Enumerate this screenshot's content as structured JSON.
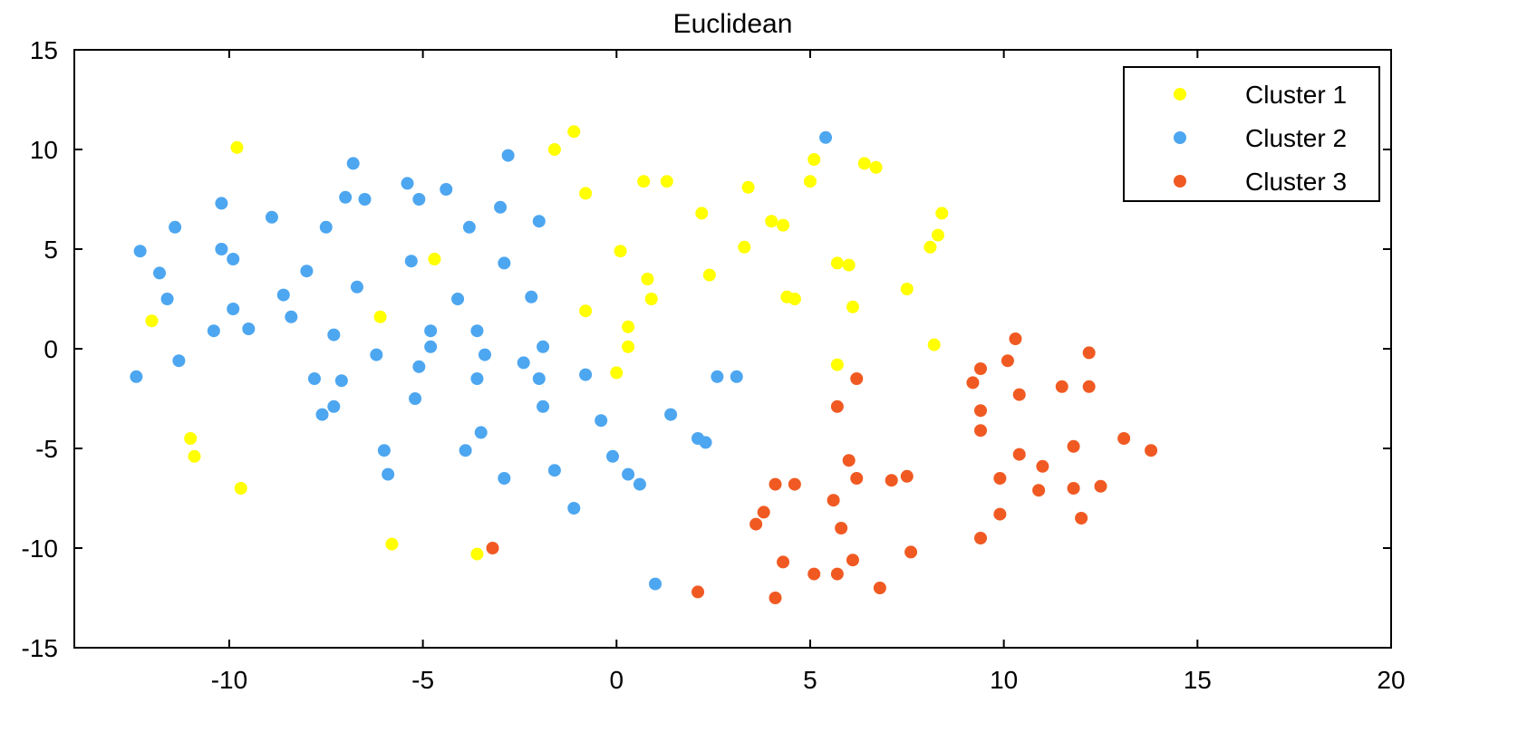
{
  "chart_data": {
    "type": "scatter",
    "title": "Euclidean",
    "xlabel": "",
    "ylabel": "",
    "xlim": [
      -14,
      20
    ],
    "ylim": [
      -15,
      15
    ],
    "x_ticks": [
      -10,
      -5,
      0,
      5,
      10,
      15,
      20
    ],
    "y_ticks": [
      -15,
      -10,
      -5,
      0,
      5,
      10,
      15
    ],
    "x_tick_labels": [
      "-10",
      "-5",
      "0",
      "5",
      "10",
      "15",
      "20"
    ],
    "y_tick_labels": [
      "-15",
      "-10",
      "-5",
      "0",
      "5",
      "10",
      "15"
    ],
    "grid": false,
    "legend_position": "top-right",
    "series": [
      {
        "name": "Cluster 1",
        "color": "#ffff00",
        "points": [
          [
            -9.8,
            10.1
          ],
          [
            -12.0,
            1.4
          ],
          [
            -11.0,
            -4.5
          ],
          [
            -10.9,
            -5.4
          ],
          [
            -9.7,
            -7.0
          ],
          [
            -6.1,
            1.6
          ],
          [
            -4.7,
            4.5
          ],
          [
            -5.8,
            -9.8
          ],
          [
            -3.6,
            -10.3
          ],
          [
            -1.6,
            10.0
          ],
          [
            -1.1,
            10.9
          ],
          [
            -0.8,
            7.8
          ],
          [
            -0.8,
            1.9
          ],
          [
            0.1,
            4.9
          ],
          [
            0.3,
            1.1
          ],
          [
            0.3,
            0.1
          ],
          [
            0.0,
            -1.2
          ],
          [
            0.7,
            8.4
          ],
          [
            1.3,
            8.4
          ],
          [
            0.8,
            3.5
          ],
          [
            0.9,
            2.5
          ],
          [
            2.2,
            6.8
          ],
          [
            2.4,
            3.7
          ],
          [
            3.3,
            5.1
          ],
          [
            3.4,
            8.1
          ],
          [
            4.0,
            6.4
          ],
          [
            4.3,
            6.2
          ],
          [
            4.4,
            2.6
          ],
          [
            4.6,
            2.5
          ],
          [
            5.0,
            8.4
          ],
          [
            5.1,
            9.5
          ],
          [
            5.7,
            4.3
          ],
          [
            6.0,
            4.2
          ],
          [
            6.1,
            2.1
          ],
          [
            6.4,
            9.3
          ],
          [
            6.7,
            9.1
          ],
          [
            5.7,
            -0.8
          ],
          [
            7.5,
            3.0
          ],
          [
            8.1,
            5.1
          ],
          [
            8.3,
            5.7
          ],
          [
            8.4,
            6.8
          ],
          [
            8.2,
            0.2
          ]
        ]
      },
      {
        "name": "Cluster 2",
        "color": "#4da6f0",
        "points": [
          [
            -12.3,
            4.9
          ],
          [
            -12.4,
            -1.4
          ],
          [
            -11.8,
            3.8
          ],
          [
            -11.6,
            2.5
          ],
          [
            -11.4,
            6.1
          ],
          [
            -11.3,
            -0.6
          ],
          [
            -10.4,
            0.9
          ],
          [
            -10.2,
            7.3
          ],
          [
            -10.2,
            5.0
          ],
          [
            -9.9,
            4.5
          ],
          [
            -9.9,
            2.0
          ],
          [
            -9.5,
            1.0
          ],
          [
            -8.9,
            6.6
          ],
          [
            -8.6,
            2.7
          ],
          [
            -8.4,
            1.6
          ],
          [
            -8.0,
            3.9
          ],
          [
            -7.8,
            -1.5
          ],
          [
            -7.6,
            -3.3
          ],
          [
            -7.3,
            -2.9
          ],
          [
            -7.5,
            6.1
          ],
          [
            -7.3,
            0.7
          ],
          [
            -7.1,
            -1.6
          ],
          [
            -7.0,
            7.6
          ],
          [
            -6.8,
            9.3
          ],
          [
            -6.7,
            3.1
          ],
          [
            -6.5,
            7.5
          ],
          [
            -6.2,
            -0.3
          ],
          [
            -6.0,
            -5.1
          ],
          [
            -5.9,
            -6.3
          ],
          [
            -5.4,
            8.3
          ],
          [
            -5.3,
            4.4
          ],
          [
            -5.1,
            7.5
          ],
          [
            -5.1,
            -0.9
          ],
          [
            -5.2,
            -2.5
          ],
          [
            -4.8,
            0.9
          ],
          [
            -4.8,
            0.1
          ],
          [
            -4.4,
            8.0
          ],
          [
            -4.1,
            2.5
          ],
          [
            -3.8,
            6.1
          ],
          [
            -3.9,
            -5.1
          ],
          [
            -3.6,
            0.9
          ],
          [
            -3.6,
            -1.5
          ],
          [
            -3.5,
            -4.2
          ],
          [
            -3.4,
            -0.3
          ],
          [
            -3.0,
            7.1
          ],
          [
            -2.9,
            4.3
          ],
          [
            -2.8,
            9.7
          ],
          [
            -2.9,
            -6.5
          ],
          [
            -2.4,
            -0.7
          ],
          [
            -2.2,
            2.6
          ],
          [
            -2.0,
            6.4
          ],
          [
            -1.9,
            0.1
          ],
          [
            -2.0,
            -1.5
          ],
          [
            -1.9,
            -2.9
          ],
          [
            -1.6,
            -6.1
          ],
          [
            -0.8,
            -1.3
          ],
          [
            -1.1,
            -8.0
          ],
          [
            -0.4,
            -3.6
          ],
          [
            -0.1,
            -5.4
          ],
          [
            0.3,
            -6.3
          ],
          [
            0.6,
            -6.8
          ],
          [
            1.0,
            -11.8
          ],
          [
            1.4,
            -3.3
          ],
          [
            2.1,
            -4.5
          ],
          [
            2.3,
            -4.7
          ],
          [
            2.6,
            -1.4
          ],
          [
            3.1,
            -1.4
          ],
          [
            5.4,
            10.6
          ]
        ]
      },
      {
        "name": "Cluster 3",
        "color": "#f05a22",
        "points": [
          [
            -3.2,
            -10.0
          ],
          [
            2.1,
            -12.2
          ],
          [
            3.6,
            -8.8
          ],
          [
            3.8,
            -8.2
          ],
          [
            4.1,
            -6.8
          ],
          [
            4.1,
            -12.5
          ],
          [
            4.3,
            -10.7
          ],
          [
            4.6,
            -6.8
          ],
          [
            5.1,
            -11.3
          ],
          [
            5.6,
            -7.6
          ],
          [
            5.7,
            -2.9
          ],
          [
            5.7,
            -11.3
          ],
          [
            5.8,
            -9.0
          ],
          [
            6.0,
            -5.6
          ],
          [
            6.1,
            -10.6
          ],
          [
            6.2,
            -6.5
          ],
          [
            6.2,
            -1.5
          ],
          [
            6.8,
            -12.0
          ],
          [
            7.1,
            -6.6
          ],
          [
            7.5,
            -6.4
          ],
          [
            7.6,
            -10.2
          ],
          [
            9.2,
            -1.7
          ],
          [
            9.4,
            -1.0
          ],
          [
            9.4,
            -3.1
          ],
          [
            9.4,
            -4.1
          ],
          [
            9.4,
            -9.5
          ],
          [
            9.9,
            -6.5
          ],
          [
            9.9,
            -8.3
          ],
          [
            10.1,
            -0.6
          ],
          [
            10.3,
            0.5
          ],
          [
            10.4,
            -2.3
          ],
          [
            10.4,
            -5.3
          ],
          [
            10.9,
            -7.1
          ],
          [
            11.0,
            -5.9
          ],
          [
            11.5,
            -1.9
          ],
          [
            11.8,
            -4.9
          ],
          [
            11.8,
            -7.0
          ],
          [
            12.0,
            -8.5
          ],
          [
            12.2,
            -1.9
          ],
          [
            12.2,
            -0.2
          ],
          [
            12.5,
            -6.9
          ],
          [
            13.1,
            -4.5
          ],
          [
            13.8,
            -5.1
          ]
        ]
      }
    ]
  }
}
